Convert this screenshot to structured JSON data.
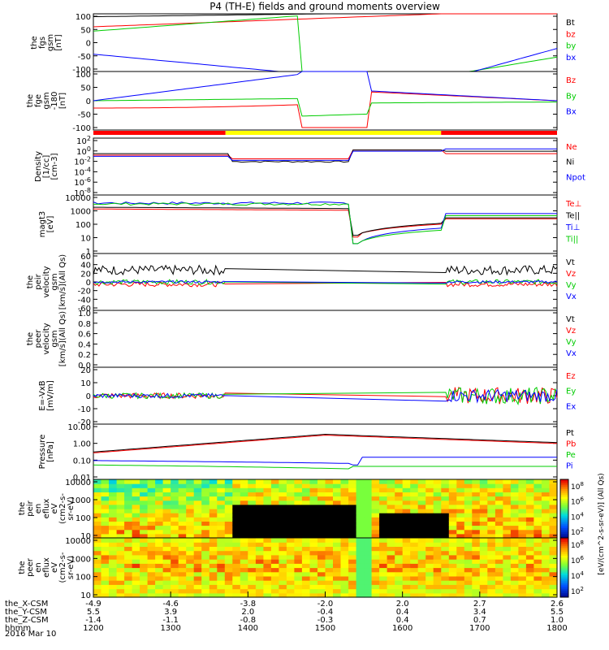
{
  "title": "P4 (TH-E) fields and ground moments overview",
  "date_label": "2016 Mar 10",
  "ephemeris": {
    "row_labels": [
      "the_X-CSM",
      "the_Y-CSM",
      "the_Z-CSM",
      "hhmm"
    ],
    "columns": [
      {
        "x": "-4.9",
        "y": "5.5",
        "z": "-1.4",
        "t": "1200"
      },
      {
        "x": "-4.6",
        "y": "3.9",
        "z": "-1.1",
        "t": "1300"
      },
      {
        "x": "-3.8",
        "y": "2.0",
        "z": "-0.8",
        "t": "1400"
      },
      {
        "x": "-2.0",
        "y": "-0.4",
        "z": "-0.3",
        "t": "1500"
      },
      {
        "x": "2.0",
        "y": "0.4",
        "z": "0.4",
        "t": "1600"
      },
      {
        "x": "2.7",
        "y": "3.4",
        "z": "0.7",
        "t": "1700"
      },
      {
        "x": "2.6",
        "y": "5.5",
        "z": "1.0",
        "t": "1800"
      }
    ]
  },
  "colors": {
    "black": "#000000",
    "red": "#ff0000",
    "green": "#00cc00",
    "blue": "#0000ff",
    "yellow": "#ffff00"
  },
  "colorbar_label": "[eV/(cm^2-s-sr-eV)] (All Qs)",
  "colorbar_ticks": [
    "10^8",
    "10^6",
    "10^4",
    "10^2"
  ],
  "chart_data": [
    {
      "type": "line",
      "panel": "fgs",
      "ylabel_lines": [
        "the",
        "fgs",
        "gsm",
        "[nT]"
      ],
      "ylim": [
        -100,
        100
      ],
      "yticks": [
        "100",
        "50",
        "0",
        "-50",
        "-100"
      ],
      "series": [
        {
          "name": "Bt",
          "color": "#000000"
        },
        {
          "name": "bz",
          "color": "#ff0000"
        },
        {
          "name": "by",
          "color": "#00cc00"
        },
        {
          "name": "bx",
          "color": "#0000ff"
        }
      ]
    },
    {
      "type": "line",
      "panel": "fge",
      "ylabel_lines": [
        "the",
        "fge",
        "gsm",
        "-180",
        "[nT]"
      ],
      "ylim": [
        -120,
        120
      ],
      "yticks": [
        "100",
        "50",
        "0",
        "-50",
        "-100"
      ],
      "series": [
        {
          "name": "Bz",
          "color": "#ff0000"
        },
        {
          "name": "By",
          "color": "#00cc00"
        },
        {
          "name": "Bx",
          "color": "#0000ff"
        }
      ]
    },
    {
      "type": "line",
      "panel": "density",
      "ylabel_lines": [
        "Density",
        "[1/cc]",
        "[cm-3]"
      ],
      "log": true,
      "ylim": [
        1e-08,
        1000.0
      ],
      "yticks": [
        "10^2",
        "10^0",
        "10^-2",
        "10^-4",
        "10^-6",
        "10^-8"
      ],
      "series": [
        {
          "name": "Ne",
          "color": "#ff0000"
        },
        {
          "name": "Ni",
          "color": "#000000"
        },
        {
          "name": "Npot",
          "color": "#0000ff"
        }
      ]
    },
    {
      "type": "line",
      "panel": "temperature",
      "ylabel_lines": [
        "magt3",
        "[eV]"
      ],
      "log": true,
      "ylim": [
        1,
        15000
      ],
      "yticks": [
        "10000",
        "1000",
        "100",
        "10",
        "1"
      ],
      "series": [
        {
          "name": "Te⊥",
          "color": "#ff0000"
        },
        {
          "name": "Te||",
          "color": "#000000"
        },
        {
          "name": "Ti⊥",
          "color": "#0000ff"
        },
        {
          "name": "Ti||",
          "color": "#00cc00"
        }
      ]
    },
    {
      "type": "line",
      "panel": "peir_velocity",
      "ylabel_lines": [
        "the",
        "peir",
        "velocity",
        "gsm",
        "[km/s](All Qs)"
      ],
      "ylim": [
        -60,
        60
      ],
      "yticks": [
        "60",
        "40",
        "20",
        "0",
        "-20",
        "-40",
        "-60"
      ],
      "series": [
        {
          "name": "Vt",
          "color": "#000000"
        },
        {
          "name": "Vz",
          "color": "#ff0000"
        },
        {
          "name": "Vy",
          "color": "#00cc00"
        },
        {
          "name": "Vx",
          "color": "#0000ff"
        }
      ]
    },
    {
      "type": "line",
      "panel": "peer_velocity",
      "ylabel_lines": [
        "the",
        "peer",
        "velocity",
        "gsm",
        "[km/s](All Qs)"
      ],
      "ylim": [
        0,
        1
      ],
      "yticks": [
        "1.0",
        "0.8",
        "0.6",
        "0.4",
        "0.2",
        "0.0"
      ],
      "series": [
        {
          "name": "Vt",
          "color": "#000000"
        },
        {
          "name": "Vz",
          "color": "#ff0000"
        },
        {
          "name": "Vy",
          "color": "#00cc00"
        },
        {
          "name": "Vx",
          "color": "#0000ff"
        }
      ]
    },
    {
      "type": "line",
      "panel": "efield",
      "ylabel_lines": [
        "E=-VxB",
        "[mV/m]"
      ],
      "ylim": [
        -20,
        20
      ],
      "yticks": [
        "20",
        "10",
        "0",
        "-10",
        "-20"
      ],
      "series": [
        {
          "name": "Ez",
          "color": "#ff0000"
        },
        {
          "name": "Ey",
          "color": "#00cc00"
        },
        {
          "name": "Ex",
          "color": "#0000ff"
        }
      ]
    },
    {
      "type": "line",
      "panel": "pressure",
      "ylabel_lines": [
        "Pressure",
        "[nPa]"
      ],
      "log": true,
      "ylim": [
        0.001,
        100
      ],
      "yticks": [
        "10.00",
        "1.00",
        "0.10",
        "0.01"
      ],
      "series": [
        {
          "name": "Pt",
          "color": "#000000"
        },
        {
          "name": "Pb",
          "color": "#ff0000"
        },
        {
          "name": "Pe",
          "color": "#00cc00"
        },
        {
          "name": "Pi",
          "color": "#0000ff"
        }
      ]
    },
    {
      "type": "heatmap",
      "panel": "peir_eflux",
      "ylabel_lines": [
        "the",
        "peir",
        "en",
        "eflux",
        "eV",
        "(cm2-s-",
        "sr-eV)"
      ],
      "log": true,
      "ylim": [
        5,
        30000
      ],
      "yticks": [
        "10000",
        "1000",
        "100",
        "10"
      ]
    },
    {
      "type": "heatmap",
      "panel": "peer_eflux",
      "ylabel_lines": [
        "the",
        "peer",
        "en",
        "eflux",
        "eV",
        "(cm2-s-",
        "sr-eV)"
      ],
      "log": true,
      "ylim": [
        5,
        30000
      ],
      "yticks": [
        "10000",
        "1000",
        "100",
        "10"
      ]
    }
  ]
}
